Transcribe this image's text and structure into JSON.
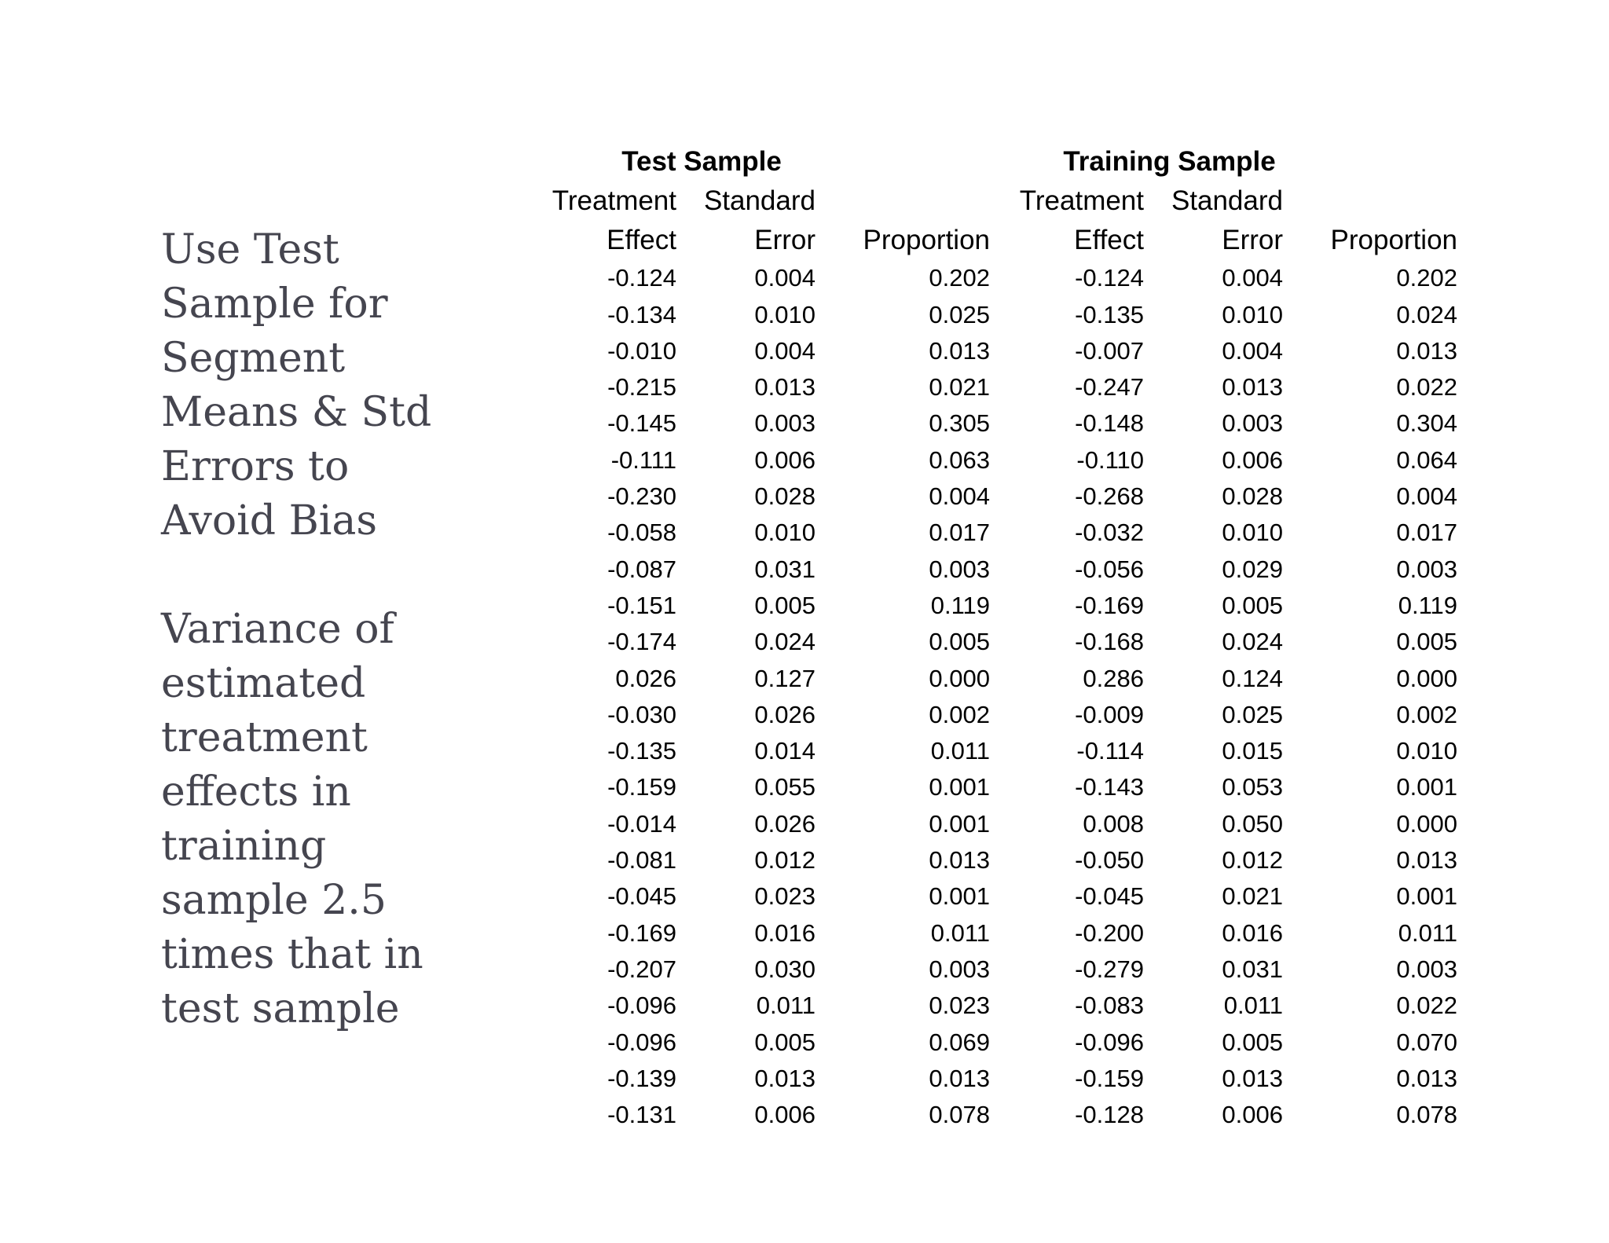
{
  "left_text": {
    "paragraph_1": "Use Test Sample for Segment Means & Std Errors to Avoid Bias",
    "paragraph_2": "Variance of estimated treatment effects in training sample 2.5 times that in test sample"
  },
  "table": {
    "groups": [
      "Test Sample",
      "Training Sample"
    ],
    "header_line_1": [
      "Treatment",
      "Standard",
      "",
      "Treatment",
      "Standard",
      ""
    ],
    "header_line_2": [
      "Effect",
      "Error",
      "Proportion",
      "Effect",
      "Error",
      "Proportion"
    ],
    "rows": [
      [
        "-0.124",
        "0.004",
        "0.202",
        "-0.124",
        "0.004",
        "0.202"
      ],
      [
        "-0.134",
        "0.010",
        "0.025",
        "-0.135",
        "0.010",
        "0.024"
      ],
      [
        "-0.010",
        "0.004",
        "0.013",
        "-0.007",
        "0.004",
        "0.013"
      ],
      [
        "-0.215",
        "0.013",
        "0.021",
        "-0.247",
        "0.013",
        "0.022"
      ],
      [
        "-0.145",
        "0.003",
        "0.305",
        "-0.148",
        "0.003",
        "0.304"
      ],
      [
        "-0.111",
        "0.006",
        "0.063",
        "-0.110",
        "0.006",
        "0.064"
      ],
      [
        "-0.230",
        "0.028",
        "0.004",
        "-0.268",
        "0.028",
        "0.004"
      ],
      [
        "-0.058",
        "0.010",
        "0.017",
        "-0.032",
        "0.010",
        "0.017"
      ],
      [
        "-0.087",
        "0.031",
        "0.003",
        "-0.056",
        "0.029",
        "0.003"
      ],
      [
        "-0.151",
        "0.005",
        "0.119",
        "-0.169",
        "0.005",
        "0.119"
      ],
      [
        "-0.174",
        "0.024",
        "0.005",
        "-0.168",
        "0.024",
        "0.005"
      ],
      [
        "0.026",
        "0.127",
        "0.000",
        "0.286",
        "0.124",
        "0.000"
      ],
      [
        "-0.030",
        "0.026",
        "0.002",
        "-0.009",
        "0.025",
        "0.002"
      ],
      [
        "-0.135",
        "0.014",
        "0.011",
        "-0.114",
        "0.015",
        "0.010"
      ],
      [
        "-0.159",
        "0.055",
        "0.001",
        "-0.143",
        "0.053",
        "0.001"
      ],
      [
        "-0.014",
        "0.026",
        "0.001",
        "0.008",
        "0.050",
        "0.000"
      ],
      [
        "-0.081",
        "0.012",
        "0.013",
        "-0.050",
        "0.012",
        "0.013"
      ],
      [
        "-0.045",
        "0.023",
        "0.001",
        "-0.045",
        "0.021",
        "0.001"
      ],
      [
        "-0.169",
        "0.016",
        "0.011",
        "-0.200",
        "0.016",
        "0.011"
      ],
      [
        "-0.207",
        "0.030",
        "0.003",
        "-0.279",
        "0.031",
        "0.003"
      ],
      [
        "-0.096",
        "0.011",
        "0.023",
        "-0.083",
        "0.011",
        "0.022"
      ],
      [
        "-0.096",
        "0.005",
        "0.069",
        "-0.096",
        "0.005",
        "0.070"
      ],
      [
        "-0.139",
        "0.013",
        "0.013",
        "-0.159",
        "0.013",
        "0.013"
      ],
      [
        "-0.131",
        "0.006",
        "0.078",
        "-0.128",
        "0.006",
        "0.078"
      ]
    ]
  }
}
